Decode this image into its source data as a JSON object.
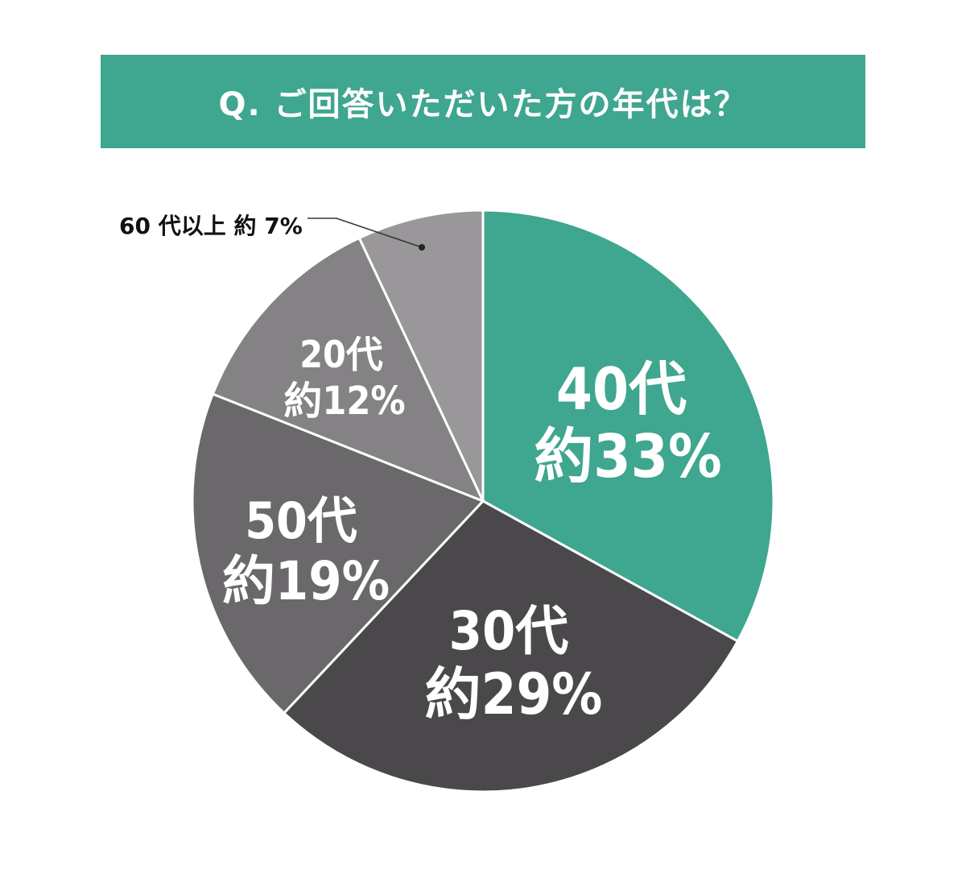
{
  "title": "Q. ご回答いただいた方の年代は？",
  "colors": {
    "banner": "#3fa68f",
    "slice_40": "#3fa68f",
    "slice_30": "#4b484b",
    "slice_50": "#6b686b",
    "slice_20": "#858285",
    "slice_60": "#9a979a",
    "divider": "#ffffff"
  },
  "chart_data": {
    "type": "pie",
    "start": "12 o'clock",
    "direction": "clockwise",
    "unit": "%",
    "slices": [
      {
        "category": "40代",
        "value": 33,
        "label": "約33%",
        "color": "#3fa68f"
      },
      {
        "category": "30代",
        "value": 29,
        "label": "約29%",
        "color": "#4b484b"
      },
      {
        "category": "50代",
        "value": 19,
        "label": "約19%",
        "color": "#6b686b"
      },
      {
        "category": "20代",
        "value": 12,
        "label": "約12%",
        "color": "#858285"
      },
      {
        "category": "60代以上",
        "value": 7,
        "label": "約7%",
        "color": "#9a979a"
      }
    ],
    "outside_label": {
      "text": "60 代以上 約 7%",
      "placement": "top-left, with leader line"
    }
  }
}
